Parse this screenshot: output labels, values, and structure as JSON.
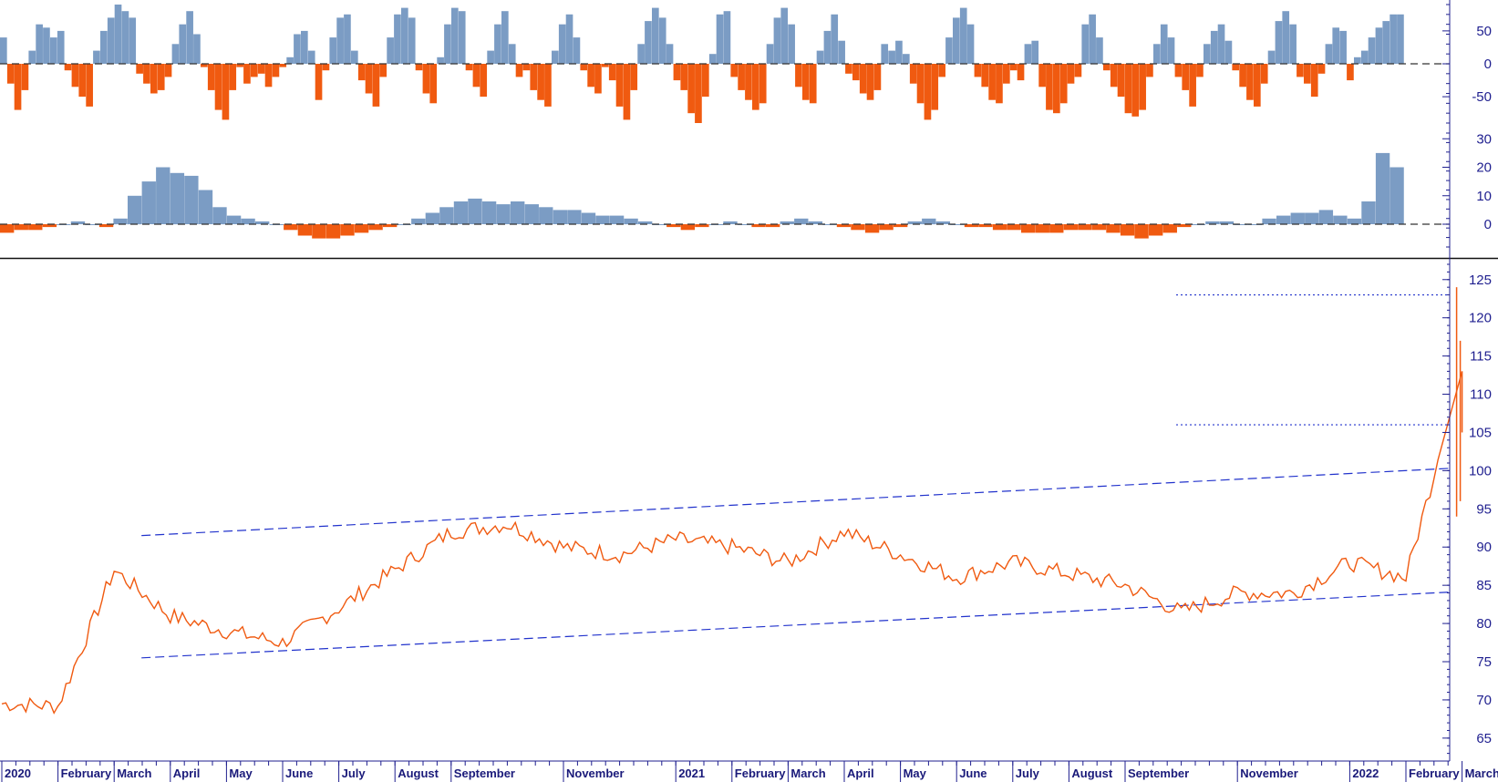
{
  "chart_data": [
    {
      "type": "bar",
      "panel": "oscillator-top",
      "yticks": [
        "50",
        "0",
        "-50"
      ],
      "ylim": [
        -90,
        90
      ],
      "zero_line": "dashed",
      "colors": {
        "positive": "#7b9cc4",
        "negative": "#f05a10"
      },
      "series": [
        {
          "values": [
            40,
            -30,
            -70,
            -40,
            20,
            60,
            55,
            40,
            50,
            -10,
            -35,
            -50,
            -65,
            20,
            50,
            70,
            90,
            80,
            70,
            -15,
            -30,
            -45,
            -40,
            -20,
            30,
            60,
            80,
            45,
            -5,
            -40,
            -70,
            -85,
            -40,
            -5,
            -30,
            -20,
            -15,
            -35,
            -20,
            -5,
            10,
            45,
            50,
            20,
            -55,
            -10,
            40,
            70,
            75,
            20,
            -25,
            -45,
            -65,
            -20,
            40,
            75,
            85,
            70,
            -10,
            -45,
            -60,
            10,
            60,
            85,
            80,
            -10,
            -35,
            -50,
            20,
            60,
            80,
            30,
            -20,
            -10,
            -40,
            -55,
            -65,
            20,
            60,
            75,
            40,
            -10,
            -35,
            -45,
            -5,
            -25,
            -65,
            -85,
            -40,
            30,
            65,
            85,
            70,
            30,
            -25,
            -40,
            -75,
            -90,
            -50,
            15,
            75,
            80,
            -20,
            -40,
            -55,
            -70,
            -60,
            30,
            70,
            85,
            60,
            -35,
            -55,
            -60,
            20,
            50,
            75,
            35,
            -15,
            -25,
            -45,
            -55,
            -40,
            30,
            20,
            35,
            15,
            -30,
            -60,
            -85,
            -70,
            -20,
            40,
            70,
            85,
            60,
            -20,
            -35,
            -55,
            -60,
            -30,
            -10,
            -25,
            30,
            35,
            -35,
            -70,
            -75,
            -60,
            -30,
            -20,
            60,
            75,
            40,
            -10,
            -35,
            -50,
            -75,
            -80,
            -70,
            -20,
            30,
            60,
            40,
            -20,
            -40,
            -65,
            -20,
            30,
            50,
            60,
            35,
            -10,
            -35,
            -55,
            -65,
            -30,
            20,
            65,
            80,
            60,
            -20,
            -30,
            -50,
            -15,
            30,
            55,
            50,
            -25,
            10,
            20,
            40,
            55,
            65,
            75,
            75
          ]
        }
      ]
    },
    {
      "type": "bar",
      "panel": "oscillator-middle",
      "yticks": [
        "30",
        "20",
        "10",
        "0"
      ],
      "ylim": [
        -8,
        32
      ],
      "zero_line": "dashed",
      "colors": {
        "positive": "#7b9cc4",
        "negative": "#f05a10"
      },
      "series": [
        {
          "values": [
            -3,
            -2,
            -2,
            -1,
            0,
            1,
            0,
            -1,
            2,
            10,
            15,
            20,
            18,
            17,
            12,
            6,
            3,
            2,
            1,
            0,
            -2,
            -4,
            -5,
            -5,
            -4,
            -3,
            -2,
            -1,
            0,
            2,
            4,
            6,
            8,
            9,
            8,
            7,
            8,
            7,
            6,
            5,
            5,
            4,
            3,
            3,
            2,
            1,
            0,
            -1,
            -2,
            -1,
            0,
            1,
            0,
            -1,
            -1,
            1,
            2,
            1,
            0,
            -1,
            -2,
            -3,
            -2,
            -1,
            1,
            2,
            1,
            0,
            -1,
            -1,
            -2,
            -2,
            -3,
            -3,
            -3,
            -2,
            -2,
            -2,
            -3,
            -4,
            -5,
            -4,
            -3,
            -1,
            0,
            1,
            1,
            0,
            0,
            2,
            3,
            4,
            4,
            5,
            3,
            2,
            8,
            25,
            20
          ]
        }
      ]
    },
    {
      "type": "line",
      "panel": "price",
      "yticks": [
        "125",
        "120",
        "115",
        "110",
        "105",
        "100",
        "95",
        "90",
        "85",
        "80",
        "75",
        "70",
        "65"
      ],
      "ylim": [
        62,
        127
      ],
      "xlabels": [
        "2020",
        "February",
        "March",
        "April",
        "May",
        "June",
        "July",
        "August",
        "September",
        "November",
        "2021",
        "February",
        "March",
        "April",
        "May",
        "June",
        "July",
        "August",
        "September",
        "November",
        "2022",
        "February",
        "March"
      ],
      "series": [
        {
          "x": [
            "2020-01",
            "2020-02",
            "2020-03",
            "2020-04",
            "2020-05",
            "2020-06",
            "2020-07",
            "2020-08",
            "2020-09",
            "2020-10",
            "2020-11",
            "2020-12",
            "2021-01",
            "2021-02",
            "2021-03",
            "2021-04",
            "2021-05",
            "2021-06",
            "2021-07",
            "2021-08",
            "2021-09",
            "2021-10",
            "2021-11",
            "2021-12",
            "2022-01",
            "2022-02",
            "2022-03"
          ],
          "values": [
            69.5,
            69.2,
            87,
            81,
            79,
            77.5,
            82,
            87,
            92,
            93,
            90,
            89,
            91,
            90,
            88,
            92,
            89,
            86,
            88,
            86.5,
            85,
            81.5,
            84,
            84,
            88,
            86,
            113
          ]
        }
      ],
      "trendlines": [
        {
          "from": [
            "2020-03",
            91.5
          ],
          "to": [
            "2022-03",
            100.3
          ]
        },
        {
          "from": [
            "2020-03",
            75.5
          ],
          "to": [
            "2022-03",
            84.1
          ]
        }
      ],
      "reference_levels": [
        123,
        106
      ]
    }
  ]
}
